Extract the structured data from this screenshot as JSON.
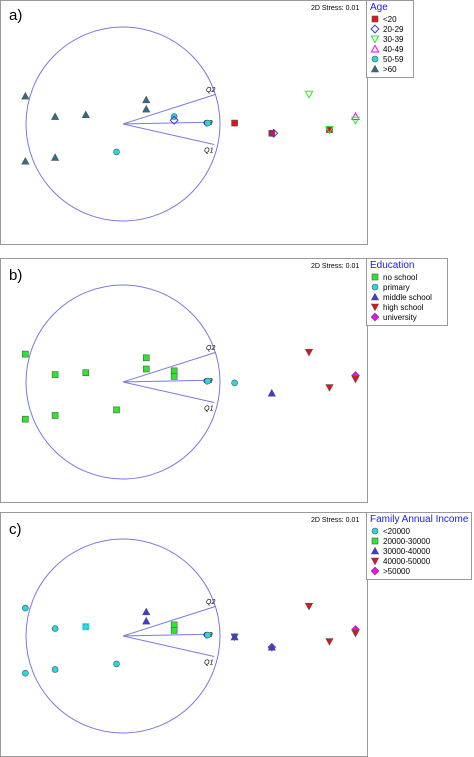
{
  "colors": {
    "circle": "#7a7ae0",
    "red": "#e8101c",
    "cyan": "#22dbe0",
    "green": "#2be82b",
    "blue": "#3a3ae8",
    "magenta": "#ff00ff",
    "slate": "#2e6f87",
    "legend_title": "#1a1aff"
  },
  "chart_data": [
    {
      "type": "scatter",
      "panel_label": "a)",
      "stress_text": "2D Stress: 0.01",
      "legend_title": "Age",
      "legend": [
        {
          "label": "<20",
          "marker": "square",
          "color": "#e8101c"
        },
        {
          "label": "20-29",
          "marker": "diamond-open",
          "color": "#3a3ae8"
        },
        {
          "label": "30-39",
          "marker": "triangle-down-open",
          "color": "#2be82b"
        },
        {
          "label": "40-49",
          "marker": "triangle-up-open",
          "color": "#ff00ff"
        },
        {
          "label": "50-59",
          "marker": "circle",
          "color": "#22dbe0"
        },
        {
          "label": ">60",
          "marker": "triangle-up",
          "color": "#2e6f87"
        }
      ],
      "vectors": [
        {
          "label": "Q2",
          "dx": 1.0,
          "dy": 0.32
        },
        {
          "label": "Q3",
          "dx": 0.97,
          "dy": 0.02
        },
        {
          "label": "Q1",
          "dx": 0.98,
          "dy": -0.22
        }
      ],
      "points": [
        {
          "x": -1.05,
          "y": 0.3,
          "marker": "triangle-up",
          "color": "#2e6f87"
        },
        {
          "x": -0.73,
          "y": 0.08,
          "marker": "triangle-up",
          "color": "#2e6f87"
        },
        {
          "x": -0.4,
          "y": 0.1,
          "marker": "triangle-up",
          "color": "#2e6f87"
        },
        {
          "x": -1.05,
          "y": -0.4,
          "marker": "triangle-up",
          "color": "#2e6f87"
        },
        {
          "x": -0.73,
          "y": -0.36,
          "marker": "triangle-up",
          "color": "#2e6f87"
        },
        {
          "x": 0.25,
          "y": 0.26,
          "marker": "triangle-up",
          "color": "#2e6f87"
        },
        {
          "x": 0.25,
          "y": 0.16,
          "marker": "triangle-up",
          "color": "#2e6f87"
        },
        {
          "x": -0.07,
          "y": -0.3,
          "marker": "circle",
          "color": "#22dbe0"
        },
        {
          "x": 0.55,
          "y": 0.08,
          "marker": "circle",
          "color": "#22dbe0"
        },
        {
          "x": 0.55,
          "y": 0.04,
          "marker": "diamond-open",
          "color": "#3a3ae8"
        },
        {
          "x": 0.91,
          "y": 0.01,
          "marker": "circle",
          "color": "#22dbe0"
        },
        {
          "x": 1.2,
          "y": 0.01,
          "marker": "square",
          "color": "#e8101c"
        },
        {
          "x": 1.6,
          "y": -0.1,
          "marker": "square",
          "color": "#e8101c"
        },
        {
          "x": 1.62,
          "y": -0.1,
          "marker": "diamond-open",
          "color": "#3a3ae8"
        },
        {
          "x": 2.0,
          "y": 0.32,
          "marker": "triangle-down-open",
          "color": "#2be82b"
        },
        {
          "x": 2.22,
          "y": -0.06,
          "marker": "square",
          "color": "#e8101c"
        },
        {
          "x": 2.22,
          "y": -0.06,
          "marker": "triangle-down-open",
          "color": "#2be82b"
        },
        {
          "x": 2.5,
          "y": 0.08,
          "marker": "triangle-up-open",
          "color": "#ff00ff"
        },
        {
          "x": 2.5,
          "y": 0.04,
          "marker": "triangle-down-open",
          "color": "#2be82b"
        }
      ]
    },
    {
      "type": "scatter",
      "panel_label": "b)",
      "stress_text": "2D Stress: 0.01",
      "legend_title": "Education",
      "legend": [
        {
          "label": "no school",
          "marker": "square",
          "color": "#2be82b"
        },
        {
          "label": "primary",
          "marker": "circle",
          "color": "#22dbe0"
        },
        {
          "label": "middle school",
          "marker": "triangle-up",
          "color": "#3a3ae8"
        },
        {
          "label": "high school",
          "marker": "triangle-down",
          "color": "#e8101c"
        },
        {
          "label": "university",
          "marker": "diamond",
          "color": "#ff00ff"
        }
      ],
      "vectors": [
        {
          "label": "Q2",
          "dx": 1.0,
          "dy": 0.32
        },
        {
          "label": "Q3",
          "dx": 0.97,
          "dy": 0.02
        },
        {
          "label": "Q1",
          "dx": 0.98,
          "dy": -0.22
        }
      ],
      "points": [
        {
          "x": -1.05,
          "y": 0.3,
          "marker": "square",
          "color": "#2be82b"
        },
        {
          "x": -0.73,
          "y": 0.08,
          "marker": "square",
          "color": "#2be82b"
        },
        {
          "x": -0.4,
          "y": 0.1,
          "marker": "square",
          "color": "#2be82b"
        },
        {
          "x": -1.05,
          "y": -0.4,
          "marker": "square",
          "color": "#2be82b"
        },
        {
          "x": -0.73,
          "y": -0.36,
          "marker": "square",
          "color": "#2be82b"
        },
        {
          "x": -0.07,
          "y": -0.3,
          "marker": "square",
          "color": "#2be82b"
        },
        {
          "x": 0.25,
          "y": 0.26,
          "marker": "square",
          "color": "#2be82b"
        },
        {
          "x": 0.25,
          "y": 0.14,
          "marker": "square",
          "color": "#2be82b"
        },
        {
          "x": 0.55,
          "y": 0.12,
          "marker": "square",
          "color": "#2be82b"
        },
        {
          "x": 0.55,
          "y": 0.06,
          "marker": "square",
          "color": "#2be82b"
        },
        {
          "x": 0.91,
          "y": 0.01,
          "marker": "circle",
          "color": "#22dbe0"
        },
        {
          "x": 1.2,
          "y": -0.01,
          "marker": "circle",
          "color": "#22dbe0"
        },
        {
          "x": 1.6,
          "y": -0.12,
          "marker": "triangle-up",
          "color": "#3a3ae8"
        },
        {
          "x": 2.0,
          "y": 0.32,
          "marker": "triangle-down",
          "color": "#e8101c"
        },
        {
          "x": 2.22,
          "y": -0.06,
          "marker": "triangle-down",
          "color": "#e8101c"
        },
        {
          "x": 2.5,
          "y": 0.07,
          "marker": "diamond",
          "color": "#ff00ff"
        },
        {
          "x": 2.5,
          "y": 0.03,
          "marker": "triangle-down",
          "color": "#e8101c"
        }
      ]
    },
    {
      "type": "scatter",
      "panel_label": "c)",
      "stress_text": "2D Stress: 0.01",
      "legend_title": "Family Annual Income",
      "legend": [
        {
          "label": "<20000",
          "marker": "circle",
          "color": "#22dbe0"
        },
        {
          "label": "20000-30000",
          "marker": "square",
          "color": "#2be82b"
        },
        {
          "label": "30000-40000",
          "marker": "triangle-up",
          "color": "#3a3ae8"
        },
        {
          "label": "40000-50000",
          "marker": "triangle-down",
          "color": "#e8101c"
        },
        {
          "label": ">50000",
          "marker": "diamond",
          "color": "#ff00ff"
        }
      ],
      "vectors": [
        {
          "label": "Q2",
          "dx": 1.0,
          "dy": 0.32
        },
        {
          "label": "Q3",
          "dx": 0.97,
          "dy": 0.02
        },
        {
          "label": "Q1",
          "dx": 0.98,
          "dy": -0.22
        }
      ],
      "points": [
        {
          "x": -1.05,
          "y": 0.3,
          "marker": "circle",
          "color": "#22dbe0"
        },
        {
          "x": -0.73,
          "y": 0.08,
          "marker": "circle",
          "color": "#22dbe0"
        },
        {
          "x": -0.4,
          "y": 0.1,
          "marker": "circle",
          "color": "#22dbe0"
        },
        {
          "x": -0.4,
          "y": 0.1,
          "marker": "square-open",
          "color": "#22dbe0"
        },
        {
          "x": -1.05,
          "y": -0.4,
          "marker": "circle",
          "color": "#22dbe0"
        },
        {
          "x": -0.73,
          "y": -0.36,
          "marker": "circle",
          "color": "#22dbe0"
        },
        {
          "x": -0.07,
          "y": -0.3,
          "marker": "circle",
          "color": "#22dbe0"
        },
        {
          "x": 0.25,
          "y": 0.26,
          "marker": "triangle-up",
          "color": "#3a3ae8"
        },
        {
          "x": 0.25,
          "y": 0.16,
          "marker": "triangle-up",
          "color": "#3a3ae8"
        },
        {
          "x": 0.55,
          "y": 0.12,
          "marker": "square",
          "color": "#2be82b"
        },
        {
          "x": 0.55,
          "y": 0.06,
          "marker": "square",
          "color": "#2be82b"
        },
        {
          "x": 0.91,
          "y": 0.01,
          "marker": "circle",
          "color": "#22dbe0"
        },
        {
          "x": 1.2,
          "y": -0.01,
          "marker": "triangle-up",
          "color": "#3a3ae8"
        },
        {
          "x": 1.2,
          "y": -0.01,
          "marker": "triangle-down",
          "color": "#3a3ae8"
        },
        {
          "x": 1.6,
          "y": -0.12,
          "marker": "diamond",
          "color": "#ff00ff"
        },
        {
          "x": 1.6,
          "y": -0.12,
          "marker": "triangle-up",
          "color": "#3a3ae8"
        },
        {
          "x": 2.0,
          "y": 0.32,
          "marker": "triangle-down",
          "color": "#e8101c"
        },
        {
          "x": 2.22,
          "y": -0.06,
          "marker": "triangle-down",
          "color": "#e8101c"
        },
        {
          "x": 2.5,
          "y": 0.07,
          "marker": "diamond",
          "color": "#ff00ff"
        },
        {
          "x": 2.5,
          "y": 0.03,
          "marker": "triangle-down",
          "color": "#e8101c"
        }
      ]
    }
  ]
}
